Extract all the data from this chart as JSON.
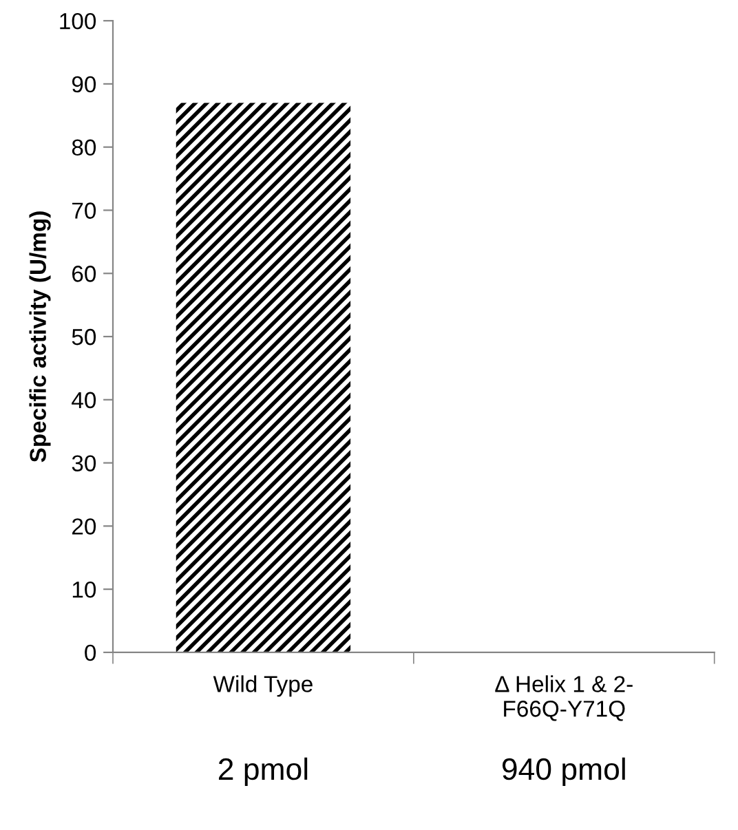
{
  "chart_data": {
    "type": "bar",
    "ylabel": "Specific activity (U/mg)",
    "categories": [
      "Wild Type",
      "Δ Helix 1 & 2-\nF66Q-Y71Q"
    ],
    "values": [
      87,
      0
    ],
    "color": "#000000",
    "ylim": [
      0,
      100
    ],
    "yticks": [
      0,
      10,
      20,
      30,
      40,
      50,
      60,
      70,
      80,
      90,
      100
    ],
    "grid": false,
    "annotations": [
      "2 pmol",
      "940 pmol"
    ]
  }
}
